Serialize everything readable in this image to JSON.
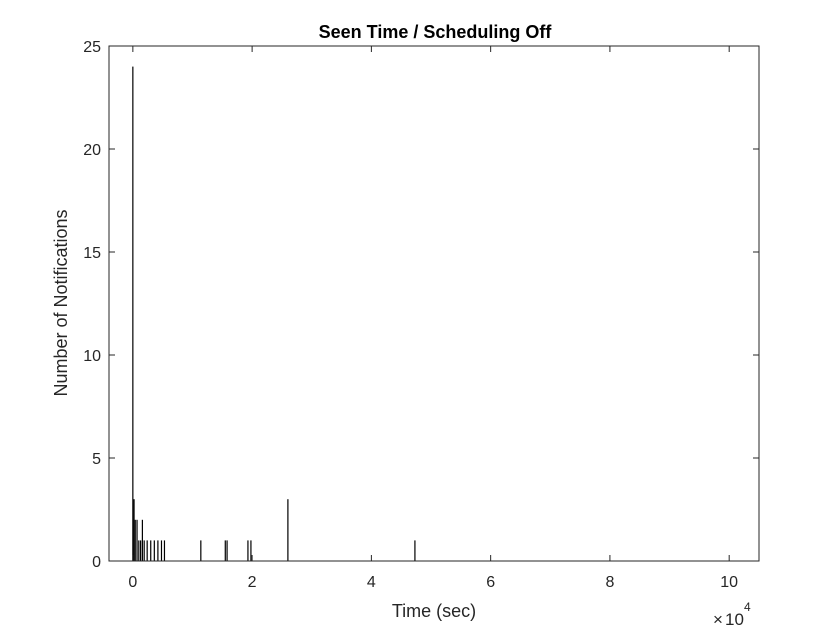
{
  "chart_data": {
    "type": "bar",
    "title": "Seen Time / Scheduling Off",
    "xlabel": "Time (sec)",
    "ylabel": "Number of Notifications",
    "xlim": [
      -0.4,
      10.5
    ],
    "ylim": [
      0,
      25
    ],
    "x_multiplier": {
      "times": "×",
      "base": "10",
      "exponent": "4"
    },
    "xticks": [
      0,
      2,
      4,
      6,
      8,
      10
    ],
    "yticks": [
      0,
      5,
      10,
      15,
      20,
      25
    ],
    "grid": false,
    "legend": "none",
    "bar_color": "#000000",
    "bars": [
      {
        "x": 0.0,
        "y": 24
      },
      {
        "x": 0.02,
        "y": 3
      },
      {
        "x": 0.04,
        "y": 2
      },
      {
        "x": 0.07,
        "y": 2
      },
      {
        "x": 0.1,
        "y": 1
      },
      {
        "x": 0.13,
        "y": 1
      },
      {
        "x": 0.16,
        "y": 2
      },
      {
        "x": 0.19,
        "y": 1
      },
      {
        "x": 0.24,
        "y": 1
      },
      {
        "x": 0.3,
        "y": 1
      },
      {
        "x": 0.36,
        "y": 1
      },
      {
        "x": 0.42,
        "y": 1
      },
      {
        "x": 0.48,
        "y": 1
      },
      {
        "x": 0.53,
        "y": 1
      },
      {
        "x": 1.14,
        "y": 1
      },
      {
        "x": 1.55,
        "y": 1
      },
      {
        "x": 1.58,
        "y": 1
      },
      {
        "x": 1.93,
        "y": 1
      },
      {
        "x": 1.98,
        "y": 1
      },
      {
        "x": 2.6,
        "y": 3
      },
      {
        "x": 4.73,
        "y": 1
      }
    ]
  }
}
